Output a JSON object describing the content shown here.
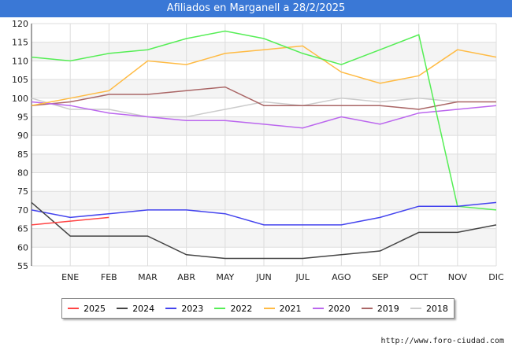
{
  "chart_data": {
    "type": "line",
    "title": "Afiliados en Marganell a 28/2/2025",
    "categories": [
      "",
      "ENE",
      "FEB",
      "MAR",
      "ABR",
      "MAY",
      "JUN",
      "JUL",
      "AGO",
      "SEP",
      "OCT",
      "NOV",
      "DIC"
    ],
    "ylim": [
      55,
      120
    ],
    "yticks": [
      55,
      60,
      65,
      70,
      75,
      80,
      85,
      90,
      95,
      100,
      105,
      110,
      115,
      120
    ],
    "grid": true,
    "legend_position": "bottom",
    "series": [
      {
        "name": "2025",
        "color": "#ff4444",
        "values": [
          66,
          67,
          68,
          null,
          null,
          null,
          null,
          null,
          null,
          null,
          null,
          null,
          null
        ]
      },
      {
        "name": "2024",
        "color": "#444444",
        "values": [
          72,
          63,
          63,
          63,
          58,
          57,
          57,
          57,
          58,
          59,
          64,
          64,
          66
        ]
      },
      {
        "name": "2023",
        "color": "#4444ee",
        "values": [
          70,
          68,
          69,
          70,
          70,
          69,
          66,
          66,
          66,
          68,
          71,
          71,
          72
        ]
      },
      {
        "name": "2022",
        "color": "#55ee55",
        "values": [
          111,
          110,
          112,
          113,
          116,
          118,
          116,
          112,
          109,
          113,
          117,
          71,
          70
        ]
      },
      {
        "name": "2021",
        "color": "#ffbb44",
        "values": [
          98,
          100,
          102,
          110,
          109,
          112,
          113,
          114,
          107,
          104,
          106,
          113,
          111
        ]
      },
      {
        "name": "2020",
        "color": "#bb66ee",
        "values": [
          99,
          98,
          96,
          95,
          94,
          94,
          93,
          92,
          95,
          93,
          96,
          97,
          98
        ]
      },
      {
        "name": "2019",
        "color": "#aa6666",
        "values": [
          98,
          99,
          101,
          101,
          102,
          103,
          98,
          98,
          98,
          98,
          97,
          99,
          99
        ]
      },
      {
        "name": "2018",
        "color": "#cccccc",
        "values": [
          100,
          97,
          97,
          95,
          95,
          97,
          99,
          98,
          100,
          99,
          100,
          99,
          null
        ]
      }
    ]
  },
  "footer": {
    "url": "http://www.foro-ciudad.com"
  }
}
